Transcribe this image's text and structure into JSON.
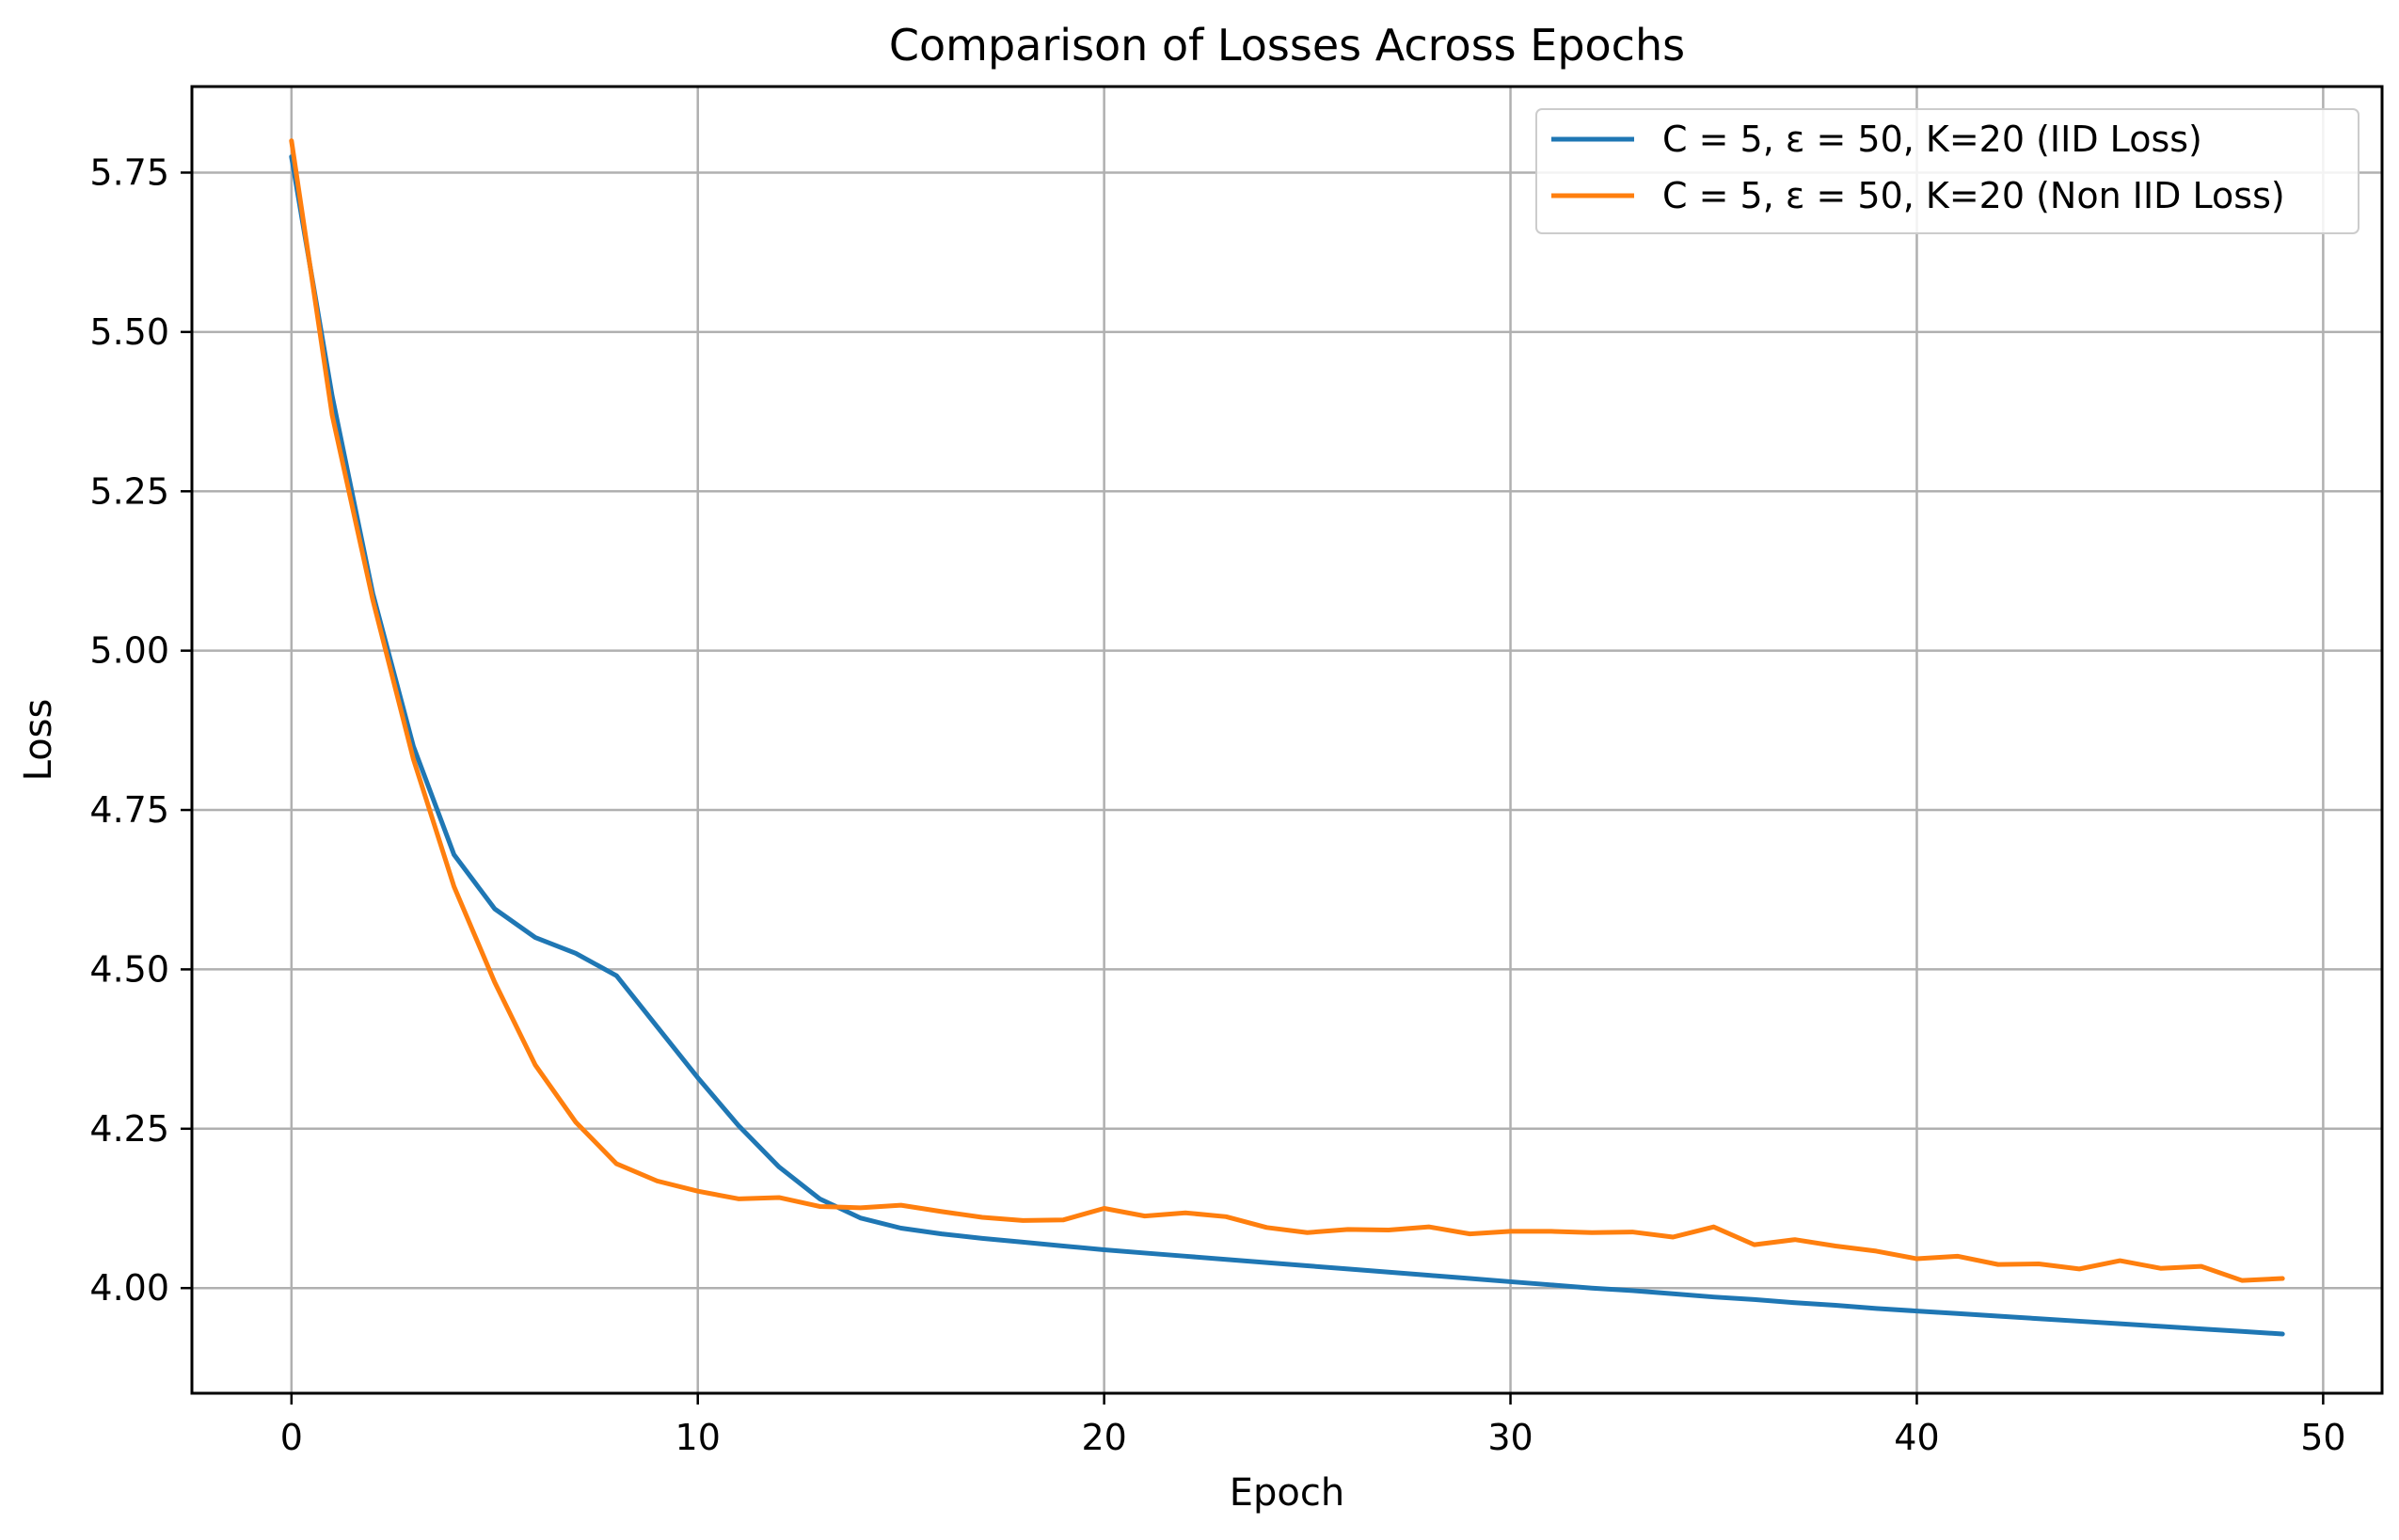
{
  "chart_data": {
    "type": "line",
    "title": "Comparison of Losses Across Epochs",
    "xlabel": "Epoch",
    "ylabel": "Loss",
    "xlim": [
      -2.45,
      51.45
    ],
    "ylim": [
      3.835,
      5.885
    ],
    "xticks": [
      0,
      10,
      20,
      30,
      40,
      50
    ],
    "xtick_labels": [
      "0",
      "10",
      "20",
      "30",
      "40",
      "50"
    ],
    "yticks": [
      4.0,
      4.25,
      4.5,
      4.75,
      5.0,
      5.25,
      5.5,
      5.75
    ],
    "ytick_labels": [
      "4.00",
      "4.25",
      "4.50",
      "4.75",
      "5.00",
      "5.25",
      "5.50",
      "5.75"
    ],
    "grid": true,
    "legend_position": "top-right",
    "x": [
      0,
      1,
      2,
      3,
      4,
      5,
      6,
      7,
      8,
      9,
      10,
      11,
      12,
      13,
      14,
      15,
      16,
      17,
      18,
      19,
      20,
      21,
      22,
      23,
      24,
      25,
      26,
      27,
      28,
      29,
      30,
      31,
      32,
      33,
      34,
      35,
      36,
      37,
      38,
      39,
      40,
      41,
      42,
      43,
      44,
      45,
      46,
      47,
      48,
      49
    ],
    "series": [
      {
        "name": "C = 5, ε = 50, K=20 (IID Loss)",
        "color": "#1f77b4",
        "values": [
          5.775,
          5.4,
          5.09,
          4.85,
          4.68,
          4.595,
          4.55,
          4.525,
          4.49,
          4.41,
          4.33,
          4.255,
          4.19,
          4.14,
          4.11,
          4.094,
          4.085,
          4.078,
          4.072,
          4.066,
          4.06,
          4.055,
          4.05,
          4.045,
          4.04,
          4.035,
          4.03,
          4.025,
          4.02,
          4.015,
          4.01,
          4.005,
          4.0,
          3.996,
          3.991,
          3.986,
          3.982,
          3.977,
          3.973,
          3.968,
          3.964,
          3.96,
          3.956,
          3.952,
          3.948,
          3.944,
          3.94,
          3.936,
          3.932,
          3.928
        ]
      },
      {
        "name": "C = 5, ε = 50, K=20 (Non IID Loss)",
        "color": "#ff7f0e",
        "values": [
          5.8,
          5.37,
          5.08,
          4.83,
          4.63,
          4.48,
          4.35,
          4.26,
          4.195,
          4.168,
          4.152,
          4.14,
          4.142,
          4.128,
          4.126,
          4.13,
          4.12,
          4.111,
          4.106,
          4.107,
          4.125,
          4.113,
          4.118,
          4.112,
          4.095,
          4.087,
          4.092,
          4.091,
          4.096,
          4.085,
          4.089,
          4.089,
          4.087,
          4.088,
          4.08,
          4.096,
          4.068,
          4.076,
          4.066,
          4.058,
          4.046,
          4.05,
          4.037,
          4.038,
          4.03,
          4.043,
          4.031,
          4.034,
          4.012,
          4.015
        ]
      }
    ]
  }
}
